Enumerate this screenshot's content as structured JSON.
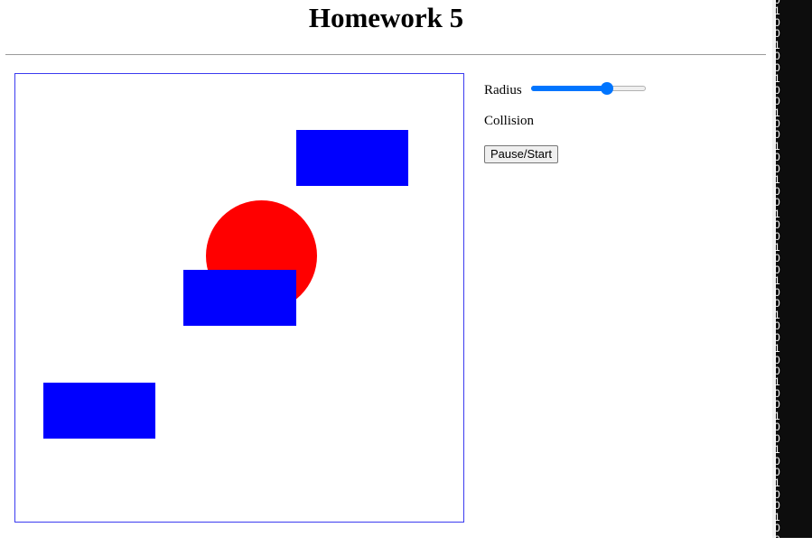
{
  "page": {
    "title": "Homework 5"
  },
  "scene": {
    "rect_color": "#0000ff",
    "circle_color": "#ff0000",
    "border_color": "#3b3bf0"
  },
  "controls": {
    "radius_label": "Radius",
    "radius_value_fraction": 0.66,
    "collision_label": "Collision",
    "pause_start_label": "Pause/Start"
  },
  "side_strip": {
    "digits": "0\n1\n0\n0\n1\n0\n0\n1\n0\n0\n1\n0\n0\n1\n0\n0\n1\n0\n0\n1\n0\n0\n1\n0\n0\n1\n0\n0\n1\n0\n0\n1\n0\n0\n1\n0\n0\n1\n0\n0\n1\n0\n0\n1\n0\n0\n1\n0\n0"
  }
}
